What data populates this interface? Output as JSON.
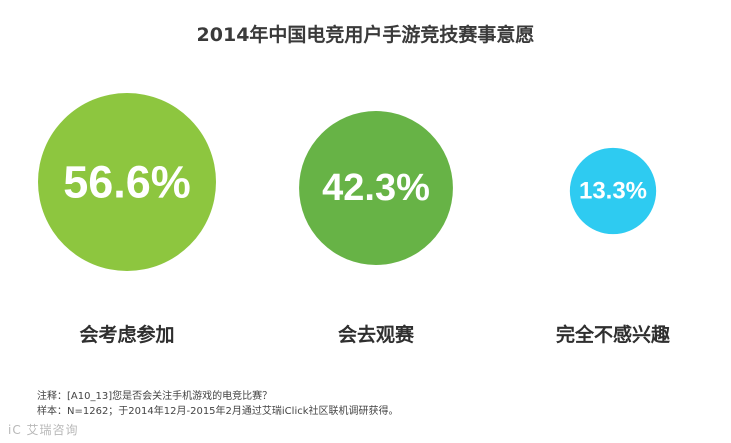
{
  "chart_data": {
    "type": "bubble",
    "title": "2014年中国电竞用户手游竞技赛事意愿",
    "categories": [
      "会考虑参加",
      "会去观赛",
      "完全不感兴趣"
    ],
    "values": [
      56.6,
      42.3,
      13.3
    ],
    "value_labels": [
      "56.6%",
      "42.3%",
      "13.3%"
    ],
    "colors": [
      "#8dc63f",
      "#67b346",
      "#2ecbf1"
    ],
    "legend": "none",
    "grid": false
  },
  "notes": {
    "note": "注释：[A10_13]您是否会关注手机游戏的电竞比赛？",
    "sample": "样本：N=1262；于2014年12月-2015年2月通过艾瑞iClick社区联机调研获得。"
  },
  "watermark": "艾瑞咨询",
  "logo_text": "iC"
}
